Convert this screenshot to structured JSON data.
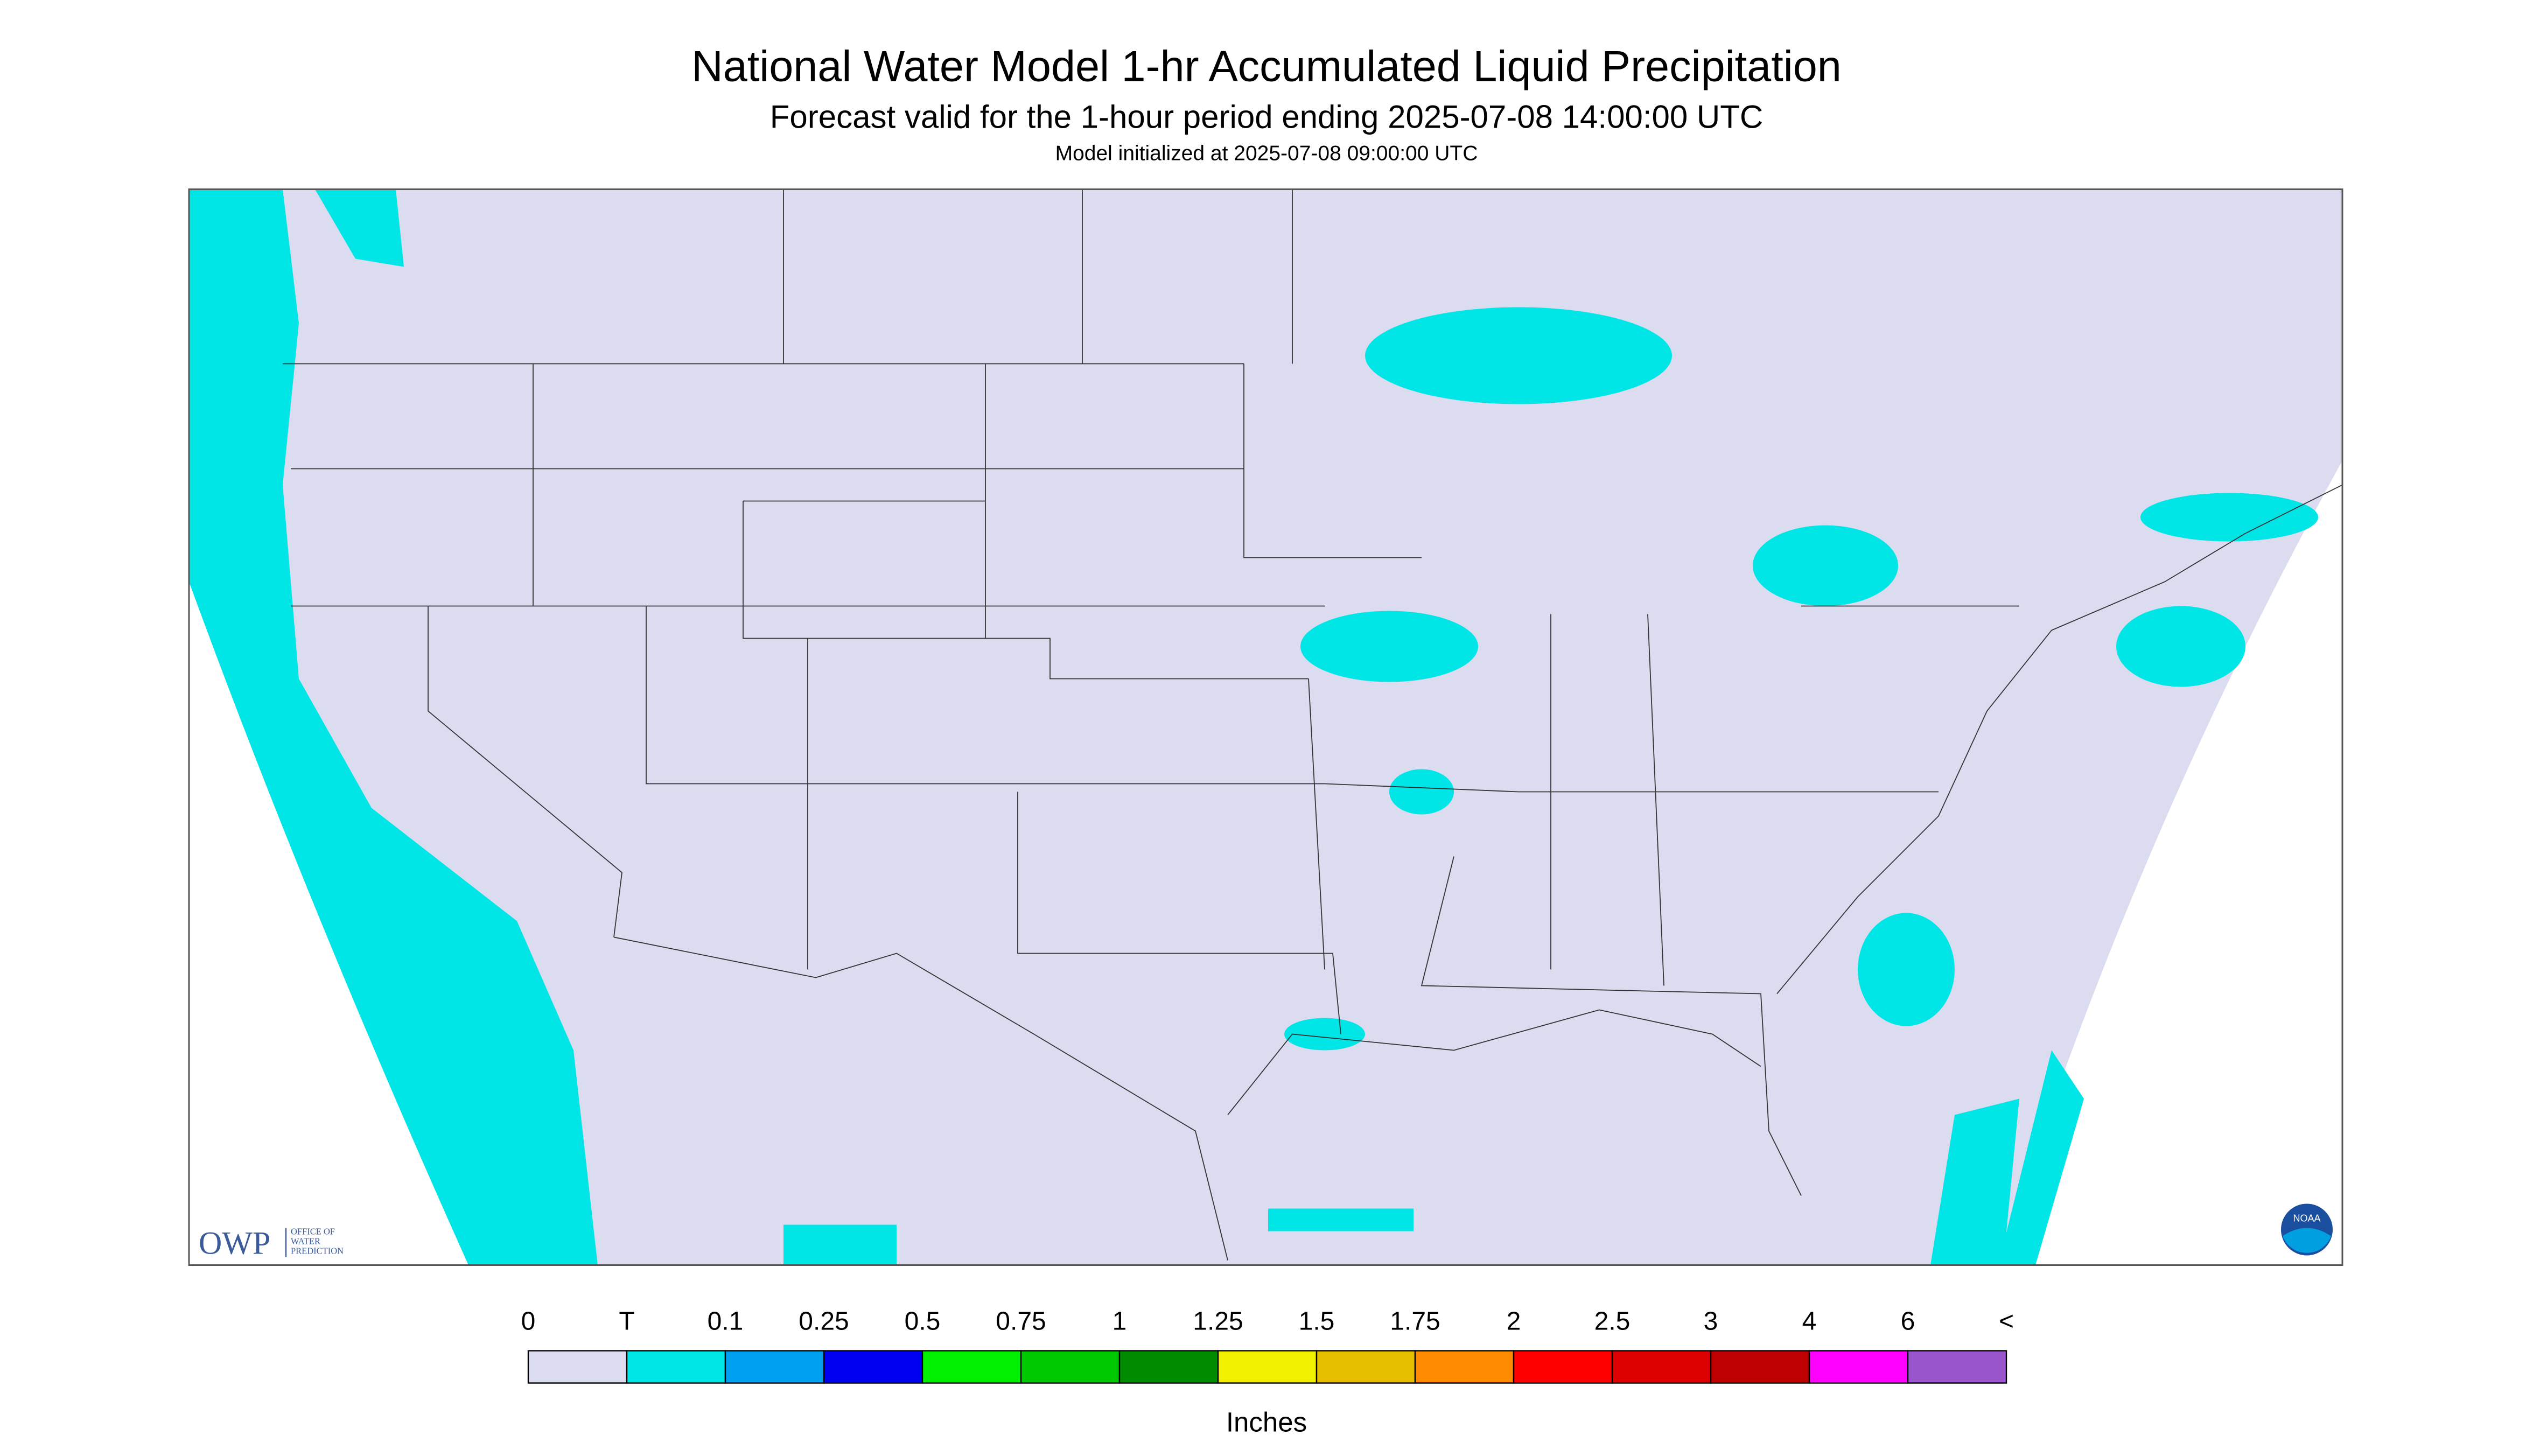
{
  "header": {
    "title": "National Water Model 1-hr Accumulated Liquid Precipitation",
    "subtitle": "Forecast valid for the 1-hour period ending 2025-07-08 14:00:00 UTC",
    "note": "Model initialized at 2025-07-08 09:00:00 UTC"
  },
  "logos": {
    "owp": "OWP",
    "owp_name": [
      "OFFICE OF",
      "WATER",
      "PREDICTION"
    ],
    "noaa": "NOAA"
  },
  "legend": {
    "labels": [
      "0",
      "T",
      "0.1",
      "0.25",
      "0.5",
      "0.75",
      "1",
      "1.25",
      "1.5",
      "1.75",
      "2",
      "2.5",
      "3",
      "4",
      "6",
      "<"
    ],
    "colors": [
      "#dcdcf0",
      "#00e6e6",
      "#00a0f0",
      "#0000f0",
      "#00f000",
      "#00c800",
      "#008c00",
      "#f0f000",
      "#e6c000",
      "#ff8c00",
      "#ff0000",
      "#dc0000",
      "#be0000",
      "#ff00ff",
      "#9955cc"
    ],
    "unit": "Inches"
  }
}
